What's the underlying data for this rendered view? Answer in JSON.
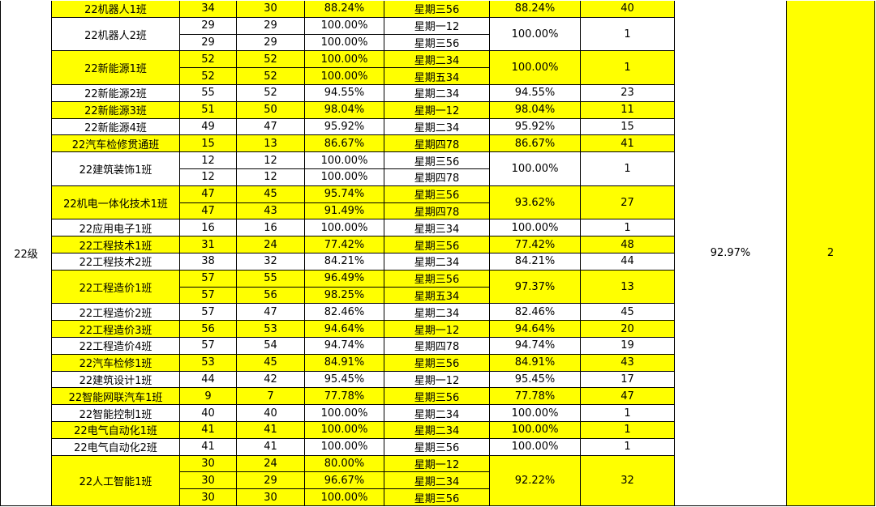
{
  "grade": "22级",
  "overall_rate": "92.97%",
  "overall_rank": 2,
  "groups": [
    {
      "name": "22机器人1班",
      "highlight": true,
      "rows": [
        [
          34,
          30,
          "88.24%",
          "星期三56"
        ]
      ],
      "rate": "88.24%",
      "rank": 40
    },
    {
      "name": "22机器人2班",
      "highlight": false,
      "rows": [
        [
          29,
          29,
          "100.00%",
          "星期一12"
        ],
        [
          29,
          29,
          "100.00%",
          "星期三56"
        ]
      ],
      "rate": "100.00%",
      "rank": 1
    },
    {
      "name": "22新能源1班",
      "highlight": true,
      "rows": [
        [
          52,
          52,
          "100.00%",
          "星期二34"
        ],
        [
          52,
          52,
          "100.00%",
          "星期五34"
        ]
      ],
      "rate": "100.00%",
      "rank": 1
    },
    {
      "name": "22新能源2班",
      "highlight": false,
      "rows": [
        [
          55,
          52,
          "94.55%",
          "星期二34"
        ]
      ],
      "rate": "94.55%",
      "rank": 23
    },
    {
      "name": "22新能源3班",
      "highlight": true,
      "rows": [
        [
          51,
          50,
          "98.04%",
          "星期一12"
        ]
      ],
      "rate": "98.04%",
      "rank": 11
    },
    {
      "name": "22新能源4班",
      "highlight": false,
      "rows": [
        [
          49,
          47,
          "95.92%",
          "星期二34"
        ]
      ],
      "rate": "95.92%",
      "rank": 15
    },
    {
      "name": "22汽车检修贯通班",
      "highlight": true,
      "rows": [
        [
          15,
          13,
          "86.67%",
          "星期四78"
        ]
      ],
      "rate": "86.67%",
      "rank": 41
    },
    {
      "name": "22建筑装饰1班",
      "highlight": false,
      "rows": [
        [
          12,
          12,
          "100.00%",
          "星期三56"
        ],
        [
          12,
          12,
          "100.00%",
          "星期四78"
        ]
      ],
      "rate": "100.00%",
      "rank": 1
    },
    {
      "name": "22机电一体化技术1班",
      "highlight": true,
      "rows": [
        [
          47,
          45,
          "95.74%",
          "星期三56"
        ],
        [
          47,
          43,
          "91.49%",
          "星期四78"
        ]
      ],
      "rate": "93.62%",
      "rank": 27
    },
    {
      "name": "22应用电子1班",
      "highlight": false,
      "rows": [
        [
          16,
          16,
          "100.00%",
          "星期三34"
        ]
      ],
      "rate": "100.00%",
      "rank": 1
    },
    {
      "name": "22工程技术1班",
      "highlight": true,
      "rows": [
        [
          31,
          24,
          "77.42%",
          "星期三56"
        ]
      ],
      "rate": "77.42%",
      "rank": 48
    },
    {
      "name": "22工程技术2班",
      "highlight": false,
      "rows": [
        [
          38,
          32,
          "84.21%",
          "星期二34"
        ]
      ],
      "rate": "84.21%",
      "rank": 44
    },
    {
      "name": "22工程造价1班",
      "highlight": true,
      "rows": [
        [
          57,
          55,
          "96.49%",
          "星期三56"
        ],
        [
          57,
          56,
          "98.25%",
          "星期五34"
        ]
      ],
      "rate": "97.37%",
      "rank": 13
    },
    {
      "name": "22工程造价2班",
      "highlight": false,
      "rows": [
        [
          57,
          47,
          "82.46%",
          "星期二34"
        ]
      ],
      "rate": "82.46%",
      "rank": 45
    },
    {
      "name": "22工程造价3班",
      "highlight": true,
      "rows": [
        [
          56,
          53,
          "94.64%",
          "星期一12"
        ]
      ],
      "rate": "94.64%",
      "rank": 20
    },
    {
      "name": "22工程造价4班",
      "highlight": false,
      "rows": [
        [
          57,
          54,
          "94.74%",
          "星期四78"
        ]
      ],
      "rate": "94.74%",
      "rank": 19
    },
    {
      "name": "22汽车检修1班",
      "highlight": true,
      "rows": [
        [
          53,
          45,
          "84.91%",
          "星期三56"
        ]
      ],
      "rate": "84.91%",
      "rank": 43
    },
    {
      "name": "22建筑设计1班",
      "highlight": false,
      "rows": [
        [
          44,
          42,
          "95.45%",
          "星期一12"
        ]
      ],
      "rate": "95.45%",
      "rank": 17
    },
    {
      "name": "22智能网联汽车1班",
      "highlight": true,
      "rows": [
        [
          9,
          7,
          "77.78%",
          "星期三56"
        ]
      ],
      "rate": "77.78%",
      "rank": 47
    },
    {
      "name": "22智能控制1班",
      "highlight": false,
      "rows": [
        [
          40,
          40,
          "100.00%",
          "星期二34"
        ]
      ],
      "rate": "100.00%",
      "rank": 1
    },
    {
      "name": "22电气自动化1班",
      "highlight": true,
      "rows": [
        [
          41,
          41,
          "100.00%",
          "星期二34"
        ]
      ],
      "rate": "100.00%",
      "rank": 1
    },
    {
      "name": "22电气自动化2班",
      "highlight": false,
      "rows": [
        [
          41,
          41,
          "100.00%",
          "星期三56"
        ]
      ],
      "rate": "100.00%",
      "rank": 1
    },
    {
      "name": "22人工智能1班",
      "highlight": true,
      "rows": [
        [
          30,
          24,
          "80.00%",
          "星期一12"
        ],
        [
          30,
          29,
          "96.67%",
          "星期二34"
        ],
        [
          30,
          30,
          "100.00%",
          "星期三56"
        ]
      ],
      "rate": "92.22%",
      "rank": 32
    }
  ]
}
